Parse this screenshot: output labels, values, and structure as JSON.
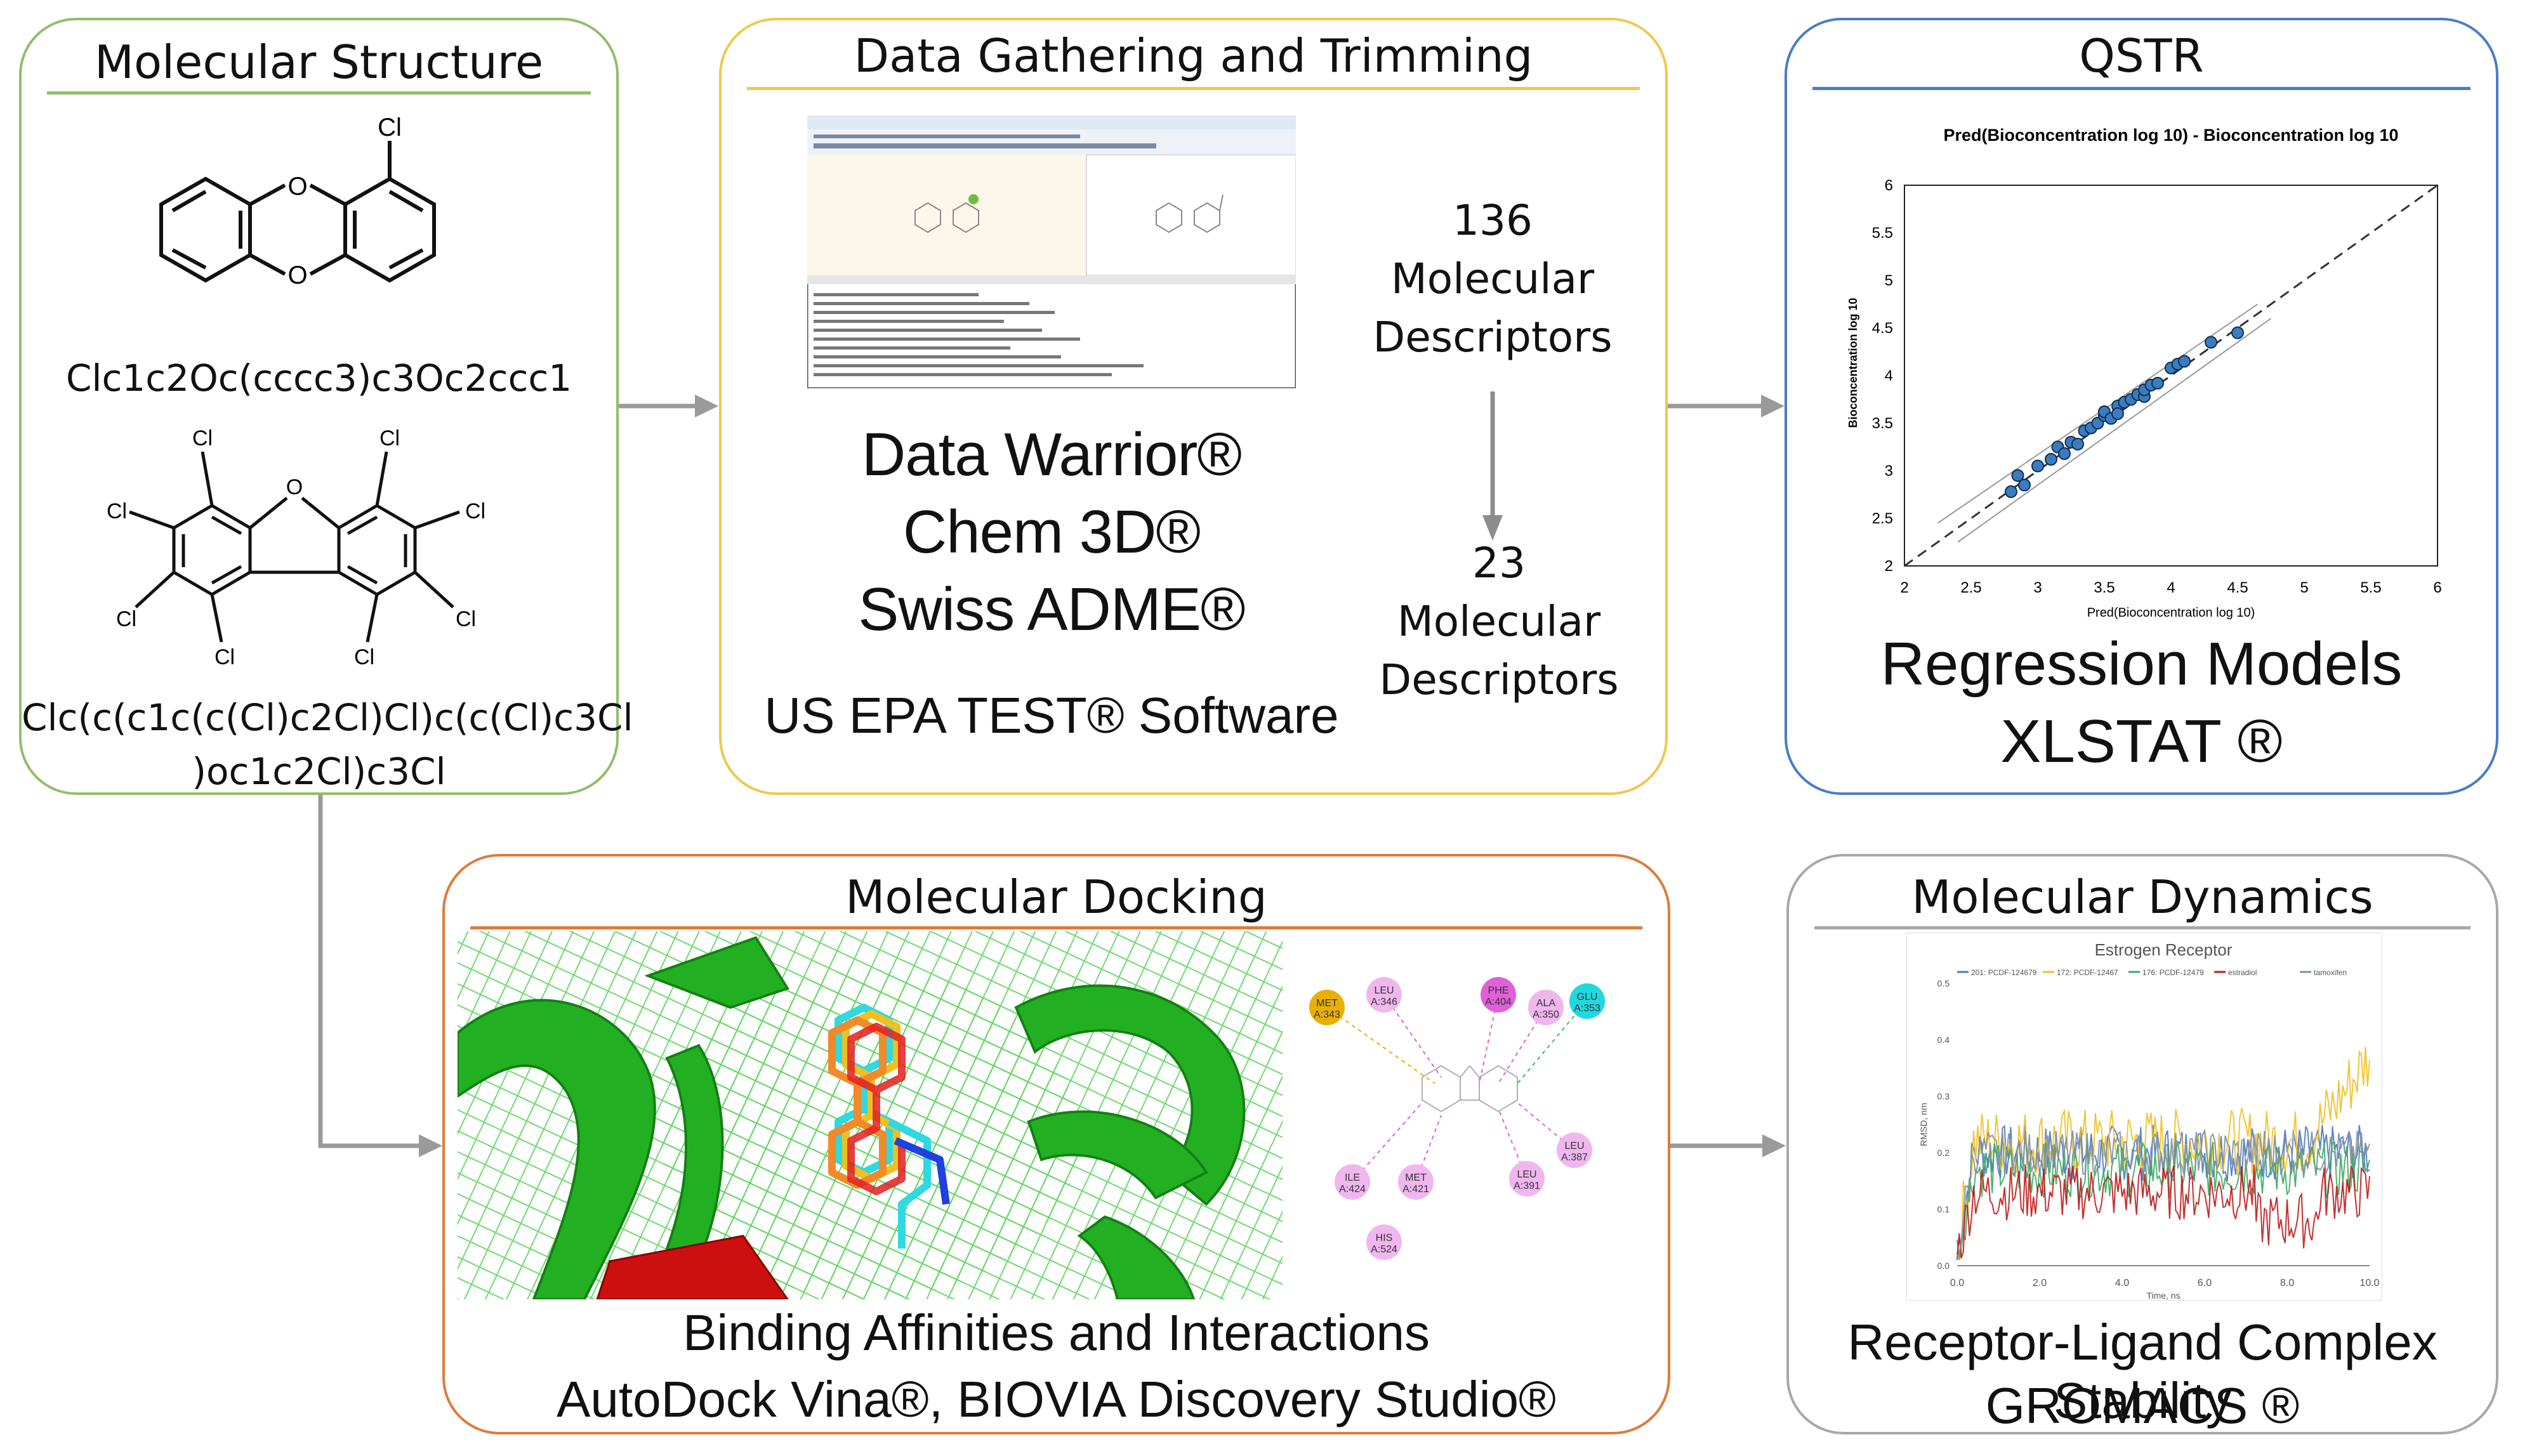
{
  "panels": {
    "molecular_structure": {
      "title": "Molecular Structure",
      "smiles_1": "Clc1c2Oc(cccc3)c3Oc2ccc1",
      "smiles_2_line1": "Clc(c(c1c(c(Cl)c2Cl)Cl)c(c(Cl)c3Cl",
      "smiles_2_line2": ")oc1c2Cl)c3Cl",
      "atom_cl": "Cl",
      "atom_o": "O"
    },
    "data_gathering": {
      "title": "Data Gathering and Trimming",
      "software_1": "Data Warrior®",
      "software_2": "Chem 3D®",
      "software_3": "Swiss ADME®",
      "software_4": "US EPA TEST® Software",
      "descriptors_before_count": "136",
      "descriptors_before_label_1": "Molecular",
      "descriptors_before_label_2": "Descriptors",
      "descriptors_after_count": "23",
      "descriptors_after_label_1": "Molecular",
      "descriptors_after_label_2": "Descriptors"
    },
    "qstr": {
      "title": "QSTR",
      "caption_1": "Regression Models",
      "caption_2": "XLSTAT ®"
    },
    "docking": {
      "title": "Molecular Docking",
      "caption_1": "Binding Affinities and Interactions",
      "caption_2": "AutoDock Vina®, BIOVIA Discovery Studio®",
      "residues": [
        {
          "name": "MET",
          "id": "A:343",
          "color": "#e8b000"
        },
        {
          "name": "LEU",
          "id": "A:346",
          "color": "#f0b6ee"
        },
        {
          "name": "PHE",
          "id": "A:404",
          "color": "#e060d8"
        },
        {
          "name": "ALA",
          "id": "A:350",
          "color": "#f0b6ee"
        },
        {
          "name": "GLU",
          "id": "A:353",
          "color": "#20d8e0"
        },
        {
          "name": "LEU",
          "id": "A:387",
          "color": "#f0b6ee"
        },
        {
          "name": "LEU",
          "id": "A:391",
          "color": "#f0b6ee"
        },
        {
          "name": "MET",
          "id": "A:421",
          "color": "#f0b6ee"
        },
        {
          "name": "ILE",
          "id": "A:424",
          "color": "#f0b6ee"
        },
        {
          "name": "HIS",
          "id": "A:524",
          "color": "#f0b6ee"
        }
      ]
    },
    "dynamics": {
      "title": "Molecular Dynamics",
      "caption_1": "Receptor-Ligand Complex Stability",
      "caption_2": "GROMACS ®"
    }
  },
  "chart_data": [
    {
      "type": "scatter",
      "title": "Pred(Bioconcentration log 10) - Bioconcentration log 10",
      "xlabel": "Pred(Bioconcentration log 10)",
      "ylabel": "Bioconcentration log 10",
      "xlim": [
        2,
        6
      ],
      "ylim": [
        2,
        6
      ],
      "xticks": [
        "2",
        "2.5",
        "3",
        "3.5",
        "4",
        "4.5",
        "5",
        "5.5",
        "6"
      ],
      "yticks": [
        "2",
        "2.5",
        "3",
        "3.5",
        "4",
        "4.5",
        "5",
        "5.5",
        "6"
      ],
      "x": [
        2.8,
        2.85,
        2.9,
        3.0,
        3.1,
        3.15,
        3.2,
        3.25,
        3.3,
        3.35,
        3.4,
        3.45,
        3.5,
        3.5,
        3.55,
        3.6,
        3.6,
        3.65,
        3.7,
        3.75,
        3.8,
        3.8,
        3.85,
        3.9,
        4.0,
        4.05,
        4.1,
        4.3,
        4.5
      ],
      "y": [
        2.78,
        2.95,
        2.85,
        3.05,
        3.12,
        3.25,
        3.18,
        3.3,
        3.28,
        3.42,
        3.45,
        3.5,
        3.58,
        3.62,
        3.55,
        3.68,
        3.6,
        3.72,
        3.75,
        3.8,
        3.78,
        3.85,
        3.9,
        3.92,
        4.08,
        4.12,
        4.15,
        4.35,
        4.45
      ],
      "reference_line": [
        [
          2,
          2
        ],
        [
          6,
          6
        ]
      ]
    },
    {
      "type": "line",
      "title": "Estrogen Receptor",
      "xlabel": "Time, ns",
      "ylabel": "RMSD, nm",
      "xlim": [
        0,
        10
      ],
      "ylim": [
        0,
        0.5
      ],
      "xticks": [
        "0.0",
        "2.0",
        "4.0",
        "6.0",
        "8.0",
        "10.0"
      ],
      "yticks": [
        "0.0",
        "0.1",
        "0.2",
        "0.3",
        "0.4",
        "0.5"
      ],
      "series": [
        {
          "name": "201: PCDF-124679",
          "color": "#4a78c0",
          "base": 0.2,
          "spread": 0.05
        },
        {
          "name": "172: PCDF-12467",
          "color": "#f0c020",
          "base": 0.22,
          "spread": 0.06
        },
        {
          "name": "176: PCDF-12479",
          "color": "#3aa860",
          "base": 0.17,
          "spread": 0.05
        },
        {
          "name": "estradiol",
          "color": "#c01818",
          "base": 0.13,
          "spread": 0.05
        },
        {
          "name": "tamoxifen",
          "color": "#8090a0",
          "base": 0.2,
          "spread": 0.04
        }
      ]
    }
  ]
}
